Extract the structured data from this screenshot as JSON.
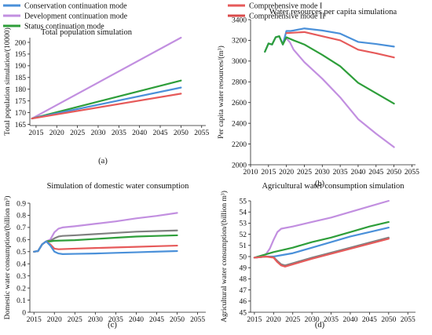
{
  "legend": {
    "items": [
      {
        "label": "Conservation continuation mode",
        "color": "#4a90d9"
      },
      {
        "label": "Comprehensive mode I",
        "color": "#e65a5a"
      },
      {
        "label": "Development continuation mode",
        "color": "#c28fe0"
      },
      {
        "label": "Comprehensive mode II",
        "color": "#d94a4a"
      },
      {
        "label": "Status continuation mode",
        "color": "#2e9e3a"
      }
    ]
  },
  "chart_data": [
    {
      "type": "line",
      "panel_label": "(a)",
      "title": "Total population simulation",
      "xlabel": "",
      "ylabel": "Total population simulation/(10000)",
      "xlim": [
        2013.5,
        2056
      ],
      "ylim": [
        164.5,
        202
      ],
      "xticks": [
        2015,
        2020,
        2025,
        2030,
        2035,
        2040,
        2045,
        2050,
        2055
      ],
      "yticks": [
        165,
        170,
        175,
        180,
        185,
        190,
        195,
        200
      ],
      "series": [
        {
          "name": "Development continuation mode",
          "color": "#c28fe0",
          "x": [
            2014,
            2050
          ],
          "y": [
            167.5,
            202
          ]
        },
        {
          "name": "Status continuation mode",
          "color": "#2e9e3a",
          "x": [
            2014,
            2050
          ],
          "y": [
            167.5,
            183.7
          ]
        },
        {
          "name": "Conservation continuation mode",
          "color": "#4a90d9",
          "x": [
            2014,
            2050
          ],
          "y": [
            167.5,
            180.7
          ]
        },
        {
          "name": "Comprehensive mode I",
          "color": "#e65a5a",
          "x": [
            2014,
            2050
          ],
          "y": [
            167.5,
            178.1
          ]
        }
      ]
    },
    {
      "type": "line",
      "panel_label": "(b)",
      "title": "Water resources per capita simulationa",
      "xlabel": "",
      "ylabel": "Per capita water resources/(m³)",
      "xlim": [
        2010,
        2056
      ],
      "ylim": [
        2000,
        3400
      ],
      "xticks": [
        2010,
        2015,
        2020,
        2025,
        2030,
        2035,
        2040,
        2045,
        2050,
        2055
      ],
      "yticks": [
        2000,
        2200,
        2400,
        2600,
        2800,
        3000,
        3200,
        3400
      ],
      "series": [
        {
          "name": "Conservation continuation mode",
          "color": "#4a90d9",
          "x": [
            2014,
            2015,
            2016,
            2017,
            2018,
            2019,
            2020,
            2021,
            2022,
            2025,
            2030,
            2035,
            2040,
            2045,
            2050
          ],
          "y": [
            3090,
            3170,
            3160,
            3230,
            3240,
            3160,
            3290,
            3290,
            3295,
            3315,
            3295,
            3265,
            3185,
            3165,
            3140
          ]
        },
        {
          "name": "Comprehensive mode I",
          "color": "#e65a5a",
          "x": [
            2020,
            2025,
            2030,
            2035,
            2040,
            2045,
            2050
          ],
          "y": [
            3270,
            3280,
            3240,
            3200,
            3110,
            3075,
            3035
          ]
        },
        {
          "name": "Development continuation mode",
          "color": "#c28fe0",
          "x": [
            2020,
            2021,
            2022,
            2025,
            2030,
            2035,
            2040,
            2045,
            2050
          ],
          "y": [
            3220,
            3180,
            3110,
            2990,
            2830,
            2650,
            2440,
            2300,
            2170
          ]
        },
        {
          "name": "Status continuation mode",
          "color": "#2e9e3a",
          "x": [
            2014,
            2015,
            2016,
            2017,
            2018,
            2019,
            2020,
            2022,
            2025,
            2030,
            2035,
            2040,
            2045,
            2050
          ],
          "y": [
            3090,
            3170,
            3160,
            3230,
            3240,
            3160,
            3230,
            3200,
            3160,
            3060,
            2950,
            2790,
            2690,
            2590
          ]
        }
      ]
    },
    {
      "type": "line",
      "panel_label": "(c)",
      "title": "Simulation of domestic water consumption",
      "xlabel": "",
      "ylabel": "Domestic water consumption/(billion m³)",
      "xlim": [
        2014,
        2057
      ],
      "ylim": [
        0,
        0.9
      ],
      "xticks": [
        2015,
        2020,
        2025,
        2030,
        2035,
        2040,
        2045,
        2050,
        2055
      ],
      "yticks": [
        0,
        0.1,
        0.2,
        0.3,
        0.4,
        0.5,
        0.6,
        0.7,
        0.8,
        0.9
      ],
      "series": [
        {
          "name": "Development continuation mode",
          "color": "#c28fe0",
          "x": [
            2015,
            2016,
            2017,
            2018,
            2019,
            2020,
            2021,
            2022,
            2025,
            2030,
            2035,
            2040,
            2045,
            2050
          ],
          "y": [
            0.5,
            0.505,
            0.56,
            0.585,
            0.6,
            0.66,
            0.69,
            0.7,
            0.71,
            0.73,
            0.75,
            0.775,
            0.795,
            0.82
          ]
        },
        {
          "name": "Comprehensive mode II",
          "color": "#808080",
          "x": [
            2015,
            2016,
            2017,
            2018,
            2019,
            2020,
            2021,
            2022,
            2025,
            2030,
            2035,
            2040,
            2045,
            2050
          ],
          "y": [
            0.5,
            0.505,
            0.56,
            0.585,
            0.59,
            0.61,
            0.625,
            0.63,
            0.635,
            0.645,
            0.655,
            0.665,
            0.67,
            0.675
          ]
        },
        {
          "name": "Status continuation mode",
          "color": "#2e9e3a",
          "x": [
            2015,
            2016,
            2017,
            2018,
            2019,
            2020,
            2025,
            2030,
            2035,
            2040,
            2045,
            2050
          ],
          "y": [
            0.5,
            0.505,
            0.56,
            0.585,
            0.585,
            0.59,
            0.595,
            0.605,
            0.615,
            0.625,
            0.63,
            0.635
          ]
        },
        {
          "name": "Comprehensive mode I",
          "color": "#e65a5a",
          "x": [
            2015,
            2016,
            2017,
            2018,
            2019,
            2020,
            2021,
            2025,
            2030,
            2035,
            2040,
            2045,
            2050
          ],
          "y": [
            0.5,
            0.505,
            0.56,
            0.585,
            0.56,
            0.525,
            0.52,
            0.525,
            0.53,
            0.535,
            0.54,
            0.545,
            0.55
          ]
        },
        {
          "name": "Conservation continuation mode",
          "color": "#4a90d9",
          "x": [
            2015,
            2016,
            2017,
            2018,
            2019,
            2020,
            2021,
            2022,
            2025,
            2030,
            2035,
            2040,
            2045,
            2050
          ],
          "y": [
            0.5,
            0.505,
            0.56,
            0.585,
            0.55,
            0.5,
            0.485,
            0.48,
            0.482,
            0.485,
            0.49,
            0.495,
            0.5,
            0.505
          ]
        }
      ]
    },
    {
      "type": "line",
      "panel_label": "(d)",
      "title": "Agricultural water consumption simulation",
      "xlabel": "",
      "ylabel": "Agricultural water consumption/(billion m³)",
      "xlim": [
        2014,
        2057
      ],
      "ylim": [
        45,
        55
      ],
      "xticks": [
        2015,
        2020,
        2025,
        2030,
        2035,
        2040,
        2045,
        2050,
        2055
      ],
      "yticks": [
        45,
        46,
        47,
        48,
        49,
        50,
        51,
        52,
        53,
        54,
        55
      ],
      "series": [
        {
          "name": "Development continuation mode",
          "color": "#c28fe0",
          "x": [
            2015,
            2018,
            2019,
            2020,
            2021,
            2022,
            2025,
            2030,
            2035,
            2040,
            2045,
            2050
          ],
          "y": [
            49.9,
            50.2,
            50.7,
            51.5,
            52.2,
            52.5,
            52.7,
            53.1,
            53.5,
            54.0,
            54.5,
            55.0
          ]
        },
        {
          "name": "Status continuation mode",
          "color": "#2e9e3a",
          "x": [
            2015,
            2018,
            2020,
            2025,
            2030,
            2035,
            2040,
            2045,
            2050
          ],
          "y": [
            49.9,
            50.2,
            50.4,
            50.8,
            51.3,
            51.7,
            52.2,
            52.7,
            53.1
          ]
        },
        {
          "name": "Conservation continuation mode",
          "color": "#4a90d9",
          "x": [
            2015,
            2018,
            2020,
            2025,
            2030,
            2035,
            2040,
            2045,
            2050
          ],
          "y": [
            49.9,
            50.0,
            50.0,
            50.3,
            50.8,
            51.3,
            51.8,
            52.2,
            52.6
          ]
        },
        {
          "name": "Comprehensive mode II",
          "color": "#808080",
          "x": [
            2015,
            2018,
            2020,
            2021,
            2022,
            2023,
            2025,
            2030,
            2035,
            2040,
            2045,
            2050
          ],
          "y": [
            49.9,
            50.0,
            49.95,
            49.6,
            49.3,
            49.2,
            49.4,
            49.9,
            50.35,
            50.8,
            51.25,
            51.7
          ]
        },
        {
          "name": "Comprehensive mode I",
          "color": "#e65a5a",
          "x": [
            2015,
            2018,
            2020,
            2021,
            2022,
            2023,
            2025,
            2030,
            2035,
            2040,
            2045,
            2050
          ],
          "y": [
            49.9,
            50.0,
            49.9,
            49.5,
            49.2,
            49.1,
            49.3,
            49.8,
            50.25,
            50.7,
            51.15,
            51.6
          ]
        }
      ]
    }
  ]
}
